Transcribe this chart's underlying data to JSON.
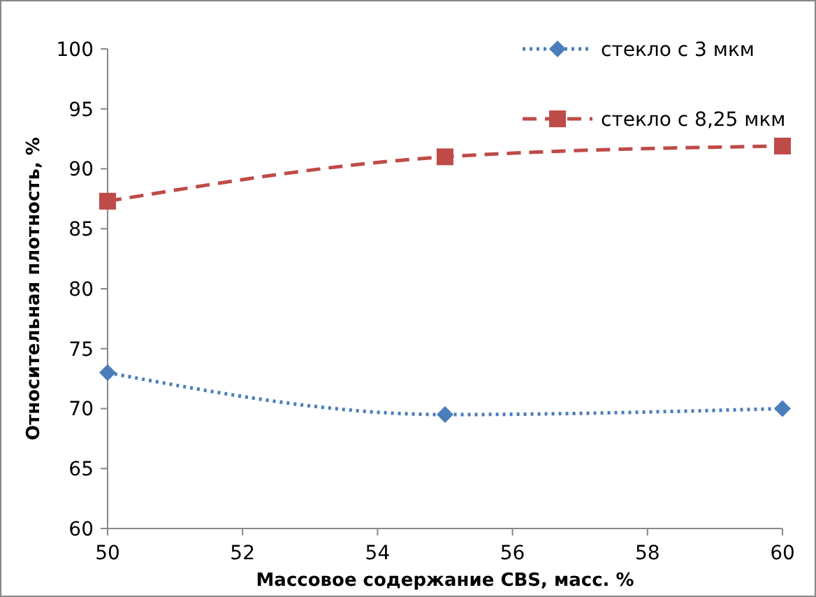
{
  "chart_data": {
    "type": "line",
    "xlabel": "Массовое  содержание CBS, масс. %",
    "ylabel": "Относительная  плотность, %",
    "x": [
      50,
      55,
      60
    ],
    "xlim": [
      50,
      60
    ],
    "xticks": [
      50,
      52,
      54,
      56,
      58,
      60
    ],
    "ylim": [
      60,
      100
    ],
    "yticks": [
      60,
      65,
      70,
      75,
      80,
      85,
      90,
      95,
      100
    ],
    "series": [
      {
        "name": "стекло с 3 мкм",
        "color": "#4a7ebb",
        "values": [
          73,
          69.5,
          70
        ],
        "marker": "diamond",
        "line_style": "dotted"
      },
      {
        "name": "стекло с 8,25 мкм",
        "color": "#be4b48",
        "values": [
          87.3,
          91,
          91.9
        ],
        "marker": "square",
        "line_style": "dashed"
      }
    ],
    "grid": false,
    "legend": "top right"
  }
}
